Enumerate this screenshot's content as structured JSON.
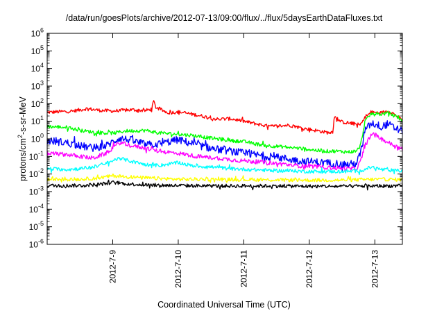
{
  "chart_data": {
    "type": "line",
    "title": "/data/run/goesPlots/archive/2012-07-13/09:00/flux/../flux/5daysEarthDataFluxes.txt",
    "xlabel": "Coordinated Universal Time (UTC)",
    "ylabel_parts": [
      "protons/cm",
      "2",
      "-s-sr-MeV"
    ],
    "yscale": "log",
    "ylim_exp": [
      -6,
      6
    ],
    "y_ticks": [
      {
        "base": "10",
        "exp": "6"
      },
      {
        "base": "10",
        "exp": "5"
      },
      {
        "base": "10",
        "exp": "4"
      },
      {
        "base": "10",
        "exp": "3"
      },
      {
        "base": "10",
        "exp": "2"
      },
      {
        "base": "10",
        "exp": "1"
      },
      {
        "base": "10",
        "exp": "0"
      },
      {
        "base": "10",
        "exp": "-1"
      },
      {
        "base": "10",
        "exp": "-2"
      },
      {
        "base": "10",
        "exp": "-3"
      },
      {
        "base": "10",
        "exp": "-4"
      },
      {
        "base": "10",
        "exp": "-5"
      },
      {
        "base": "10",
        "exp": "-6"
      }
    ],
    "x_ticks": [
      "2012-7-9",
      "2012-7-10",
      "2012-7-11",
      "2012-7-12",
      "2012-7-13"
    ],
    "x_tick_days": [
      9,
      10,
      11,
      12,
      13
    ],
    "xlim_days": [
      8.0,
      13.42
    ],
    "grid": false,
    "series": [
      {
        "color": "#ff0000",
        "noise": 0.1,
        "points": [
          [
            8.0,
            32
          ],
          [
            8.4,
            38
          ],
          [
            8.6,
            52
          ],
          [
            8.8,
            42
          ],
          [
            9.0,
            38
          ],
          [
            9.3,
            45
          ],
          [
            9.5,
            40
          ],
          [
            9.6,
            50
          ],
          [
            9.62,
            150
          ],
          [
            9.66,
            60
          ],
          [
            9.72,
            48
          ],
          [
            9.85,
            30
          ],
          [
            10.0,
            34
          ],
          [
            10.1,
            30
          ],
          [
            10.3,
            22
          ],
          [
            10.6,
            13
          ],
          [
            10.8,
            14
          ],
          [
            11.0,
            10
          ],
          [
            11.2,
            7
          ],
          [
            11.4,
            5
          ],
          [
            11.7,
            6
          ],
          [
            11.9,
            4
          ],
          [
            12.1,
            3
          ],
          [
            12.3,
            2.2
          ],
          [
            12.36,
            2.6
          ],
          [
            12.38,
            20
          ],
          [
            12.42,
            13
          ],
          [
            12.5,
            9
          ],
          [
            12.6,
            8
          ],
          [
            12.7,
            7
          ],
          [
            12.78,
            6
          ],
          [
            12.85,
            18
          ],
          [
            12.95,
            32
          ],
          [
            13.1,
            30
          ],
          [
            13.2,
            40
          ],
          [
            13.3,
            25
          ],
          [
            13.42,
            12
          ]
        ]
      },
      {
        "color": "#00ff00",
        "noise": 0.1,
        "points": [
          [
            8.0,
            5
          ],
          [
            8.3,
            4.5
          ],
          [
            8.5,
            3
          ],
          [
            8.8,
            2.2
          ],
          [
            9.0,
            2.1
          ],
          [
            9.2,
            2.8
          ],
          [
            9.5,
            3
          ],
          [
            9.7,
            2.2
          ],
          [
            10.0,
            1.8
          ],
          [
            10.2,
            1.6
          ],
          [
            10.5,
            1.1
          ],
          [
            10.8,
            0.8
          ],
          [
            11.0,
            0.7
          ],
          [
            11.2,
            0.5
          ],
          [
            11.4,
            0.4
          ],
          [
            11.6,
            0.35
          ],
          [
            11.8,
            0.3
          ],
          [
            12.0,
            0.25
          ],
          [
            12.2,
            0.2
          ],
          [
            12.4,
            0.2
          ],
          [
            12.6,
            0.18
          ],
          [
            12.72,
            0.2
          ],
          [
            12.78,
            0.4
          ],
          [
            12.85,
            10
          ],
          [
            12.95,
            28
          ],
          [
            13.1,
            25
          ],
          [
            13.2,
            30
          ],
          [
            13.3,
            20
          ],
          [
            13.42,
            10
          ]
        ]
      },
      {
        "color": "#0000ff",
        "noise": 0.22,
        "points": [
          [
            8.0,
            0.8
          ],
          [
            8.3,
            0.6
          ],
          [
            8.5,
            0.4
          ],
          [
            8.7,
            0.3
          ],
          [
            8.9,
            0.4
          ],
          [
            9.1,
            1.1
          ],
          [
            9.3,
            0.8
          ],
          [
            9.5,
            0.45
          ],
          [
            9.7,
            0.5
          ],
          [
            10.0,
            0.9
          ],
          [
            10.2,
            0.55
          ],
          [
            10.4,
            0.35
          ],
          [
            10.6,
            0.25
          ],
          [
            10.8,
            0.2
          ],
          [
            11.0,
            0.15
          ],
          [
            11.2,
            0.12
          ],
          [
            11.4,
            0.1
          ],
          [
            11.6,
            0.08
          ],
          [
            11.8,
            0.06
          ],
          [
            12.0,
            0.05
          ],
          [
            12.2,
            0.045
          ],
          [
            12.4,
            0.04
          ],
          [
            12.6,
            0.035
          ],
          [
            12.72,
            0.04
          ],
          [
            12.78,
            0.15
          ],
          [
            12.85,
            3
          ],
          [
            12.95,
            8
          ],
          [
            13.1,
            5
          ],
          [
            13.2,
            7
          ],
          [
            13.3,
            4
          ],
          [
            13.42,
            2.8
          ]
        ]
      },
      {
        "color": "#ff00ff",
        "noise": 0.12,
        "points": [
          [
            8.0,
            0.15
          ],
          [
            8.3,
            0.13
          ],
          [
            8.5,
            0.1
          ],
          [
            8.7,
            0.08
          ],
          [
            8.9,
            0.15
          ],
          [
            9.1,
            0.6
          ],
          [
            9.3,
            0.4
          ],
          [
            9.5,
            0.3
          ],
          [
            9.7,
            0.2
          ],
          [
            10.0,
            0.15
          ],
          [
            10.3,
            0.1
          ],
          [
            10.6,
            0.08
          ],
          [
            10.9,
            0.06
          ],
          [
            11.2,
            0.05
          ],
          [
            11.5,
            0.04
          ],
          [
            11.8,
            0.03
          ],
          [
            12.0,
            0.028
          ],
          [
            12.2,
            0.025
          ],
          [
            12.4,
            0.022
          ],
          [
            12.6,
            0.02
          ],
          [
            12.72,
            0.02
          ],
          [
            12.78,
            0.05
          ],
          [
            12.85,
            0.4
          ],
          [
            12.95,
            2.0
          ],
          [
            13.1,
            1.0
          ],
          [
            13.25,
            0.5
          ],
          [
            13.42,
            0.25
          ]
        ]
      },
      {
        "color": "#00ffff",
        "noise": 0.1,
        "points": [
          [
            8.0,
            0.02
          ],
          [
            8.3,
            0.018
          ],
          [
            8.5,
            0.02
          ],
          [
            8.7,
            0.025
          ],
          [
            8.9,
            0.04
          ],
          [
            9.1,
            0.08
          ],
          [
            9.3,
            0.05
          ],
          [
            9.5,
            0.035
          ],
          [
            9.7,
            0.03
          ],
          [
            10.0,
            0.045
          ],
          [
            10.2,
            0.03
          ],
          [
            10.5,
            0.025
          ],
          [
            10.8,
            0.02
          ],
          [
            11.1,
            0.018
          ],
          [
            11.4,
            0.016
          ],
          [
            11.7,
            0.015
          ],
          [
            12.0,
            0.014
          ],
          [
            12.3,
            0.014
          ],
          [
            12.6,
            0.014
          ],
          [
            12.8,
            0.016
          ],
          [
            12.95,
            0.025
          ],
          [
            13.1,
            0.018
          ],
          [
            13.25,
            0.016
          ],
          [
            13.42,
            0.015
          ]
        ]
      },
      {
        "color": "#ffff00",
        "noise": 0.1,
        "points": [
          [
            8.0,
            0.005
          ],
          [
            8.5,
            0.005
          ],
          [
            8.8,
            0.006
          ],
          [
            9.0,
            0.008
          ],
          [
            9.2,
            0.007
          ],
          [
            9.5,
            0.006
          ],
          [
            10.0,
            0.005
          ],
          [
            10.5,
            0.005
          ],
          [
            11.0,
            0.0048
          ],
          [
            11.5,
            0.0046
          ],
          [
            12.0,
            0.0045
          ],
          [
            12.5,
            0.0045
          ],
          [
            13.0,
            0.005
          ],
          [
            13.42,
            0.0048
          ]
        ]
      },
      {
        "color": "#000000",
        "noise": 0.1,
        "points": [
          [
            8.0,
            0.0022
          ],
          [
            8.5,
            0.0022
          ],
          [
            8.8,
            0.0026
          ],
          [
            9.0,
            0.0033
          ],
          [
            9.2,
            0.0028
          ],
          [
            9.5,
            0.0024
          ],
          [
            10.0,
            0.0022
          ],
          [
            10.5,
            0.0021
          ],
          [
            11.0,
            0.0021
          ],
          [
            11.5,
            0.0021
          ],
          [
            12.0,
            0.002
          ],
          [
            12.5,
            0.002
          ],
          [
            13.0,
            0.0021
          ],
          [
            13.42,
            0.0021
          ]
        ]
      }
    ]
  }
}
